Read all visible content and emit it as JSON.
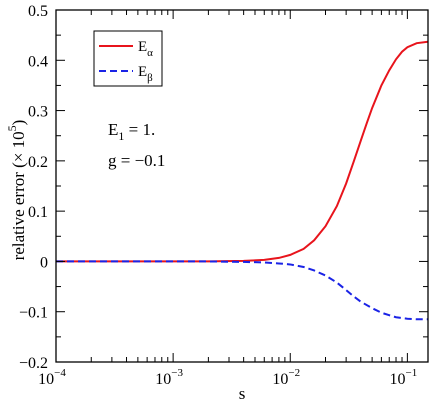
{
  "chart_data": {
    "type": "line",
    "title": "",
    "xlabel": "s",
    "ylabel": "relative error (× 10",
    "ylabel_exponent": "5",
    "ylabel_close": ")",
    "x_scale": "log",
    "xlim": [
      0.0001,
      0.15
    ],
    "ylim": [
      -0.2,
      0.5
    ],
    "grid": false,
    "legend_position": "top-left",
    "y_ticks": [
      {
        "value": -0.2,
        "label": "−0.2"
      },
      {
        "value": -0.1,
        "label": "−0.1"
      },
      {
        "value": 0,
        "label": "0"
      },
      {
        "value": 0.1,
        "label": "0.1"
      },
      {
        "value": 0.2,
        "label": "0.2"
      },
      {
        "value": 0.3,
        "label": "0.3"
      },
      {
        "value": 0.4,
        "label": "0.4"
      },
      {
        "value": 0.5,
        "label": "0.5"
      }
    ],
    "x_ticks": [
      {
        "value": 0.0001,
        "base": "10",
        "exp": "−4"
      },
      {
        "value": 0.001,
        "base": "10",
        "exp": "−3"
      },
      {
        "value": 0.01,
        "base": "10",
        "exp": "−2"
      },
      {
        "value": 0.1,
        "base": "10",
        "exp": "−1"
      }
    ],
    "annotations": [
      {
        "main": "E",
        "sub": "1",
        "rest": " = 1."
      },
      {
        "main": "g = −0.1"
      }
    ],
    "series": [
      {
        "name_main": "E",
        "name_sub": "α",
        "color": "#e8141c",
        "dash": "solid",
        "points": [
          [
            0.0001,
            0.0
          ],
          [
            0.002,
            0.0
          ],
          [
            0.004,
            0.001
          ],
          [
            0.006,
            0.003
          ],
          [
            0.008,
            0.007
          ],
          [
            0.01,
            0.013
          ],
          [
            0.013,
            0.025
          ],
          [
            0.016,
            0.042
          ],
          [
            0.02,
            0.07
          ],
          [
            0.025,
            0.11
          ],
          [
            0.03,
            0.155
          ],
          [
            0.035,
            0.2
          ],
          [
            0.04,
            0.24
          ],
          [
            0.045,
            0.275
          ],
          [
            0.05,
            0.305
          ],
          [
            0.06,
            0.35
          ],
          [
            0.07,
            0.38
          ],
          [
            0.08,
            0.402
          ],
          [
            0.09,
            0.417
          ],
          [
            0.1,
            0.426
          ],
          [
            0.12,
            0.434
          ],
          [
            0.15,
            0.437
          ]
        ]
      },
      {
        "name_main": "E",
        "name_sub": "β",
        "color": "#1a23e6",
        "dash": "dashed",
        "points": [
          [
            0.0001,
            0.0
          ],
          [
            0.002,
            0.0
          ],
          [
            0.004,
            -0.001
          ],
          [
            0.006,
            -0.002
          ],
          [
            0.008,
            -0.004
          ],
          [
            0.01,
            -0.006
          ],
          [
            0.013,
            -0.011
          ],
          [
            0.016,
            -0.018
          ],
          [
            0.02,
            -0.028
          ],
          [
            0.025,
            -0.042
          ],
          [
            0.03,
            -0.057
          ],
          [
            0.035,
            -0.07
          ],
          [
            0.04,
            -0.08
          ],
          [
            0.05,
            -0.093
          ],
          [
            0.06,
            -0.102
          ],
          [
            0.07,
            -0.107
          ],
          [
            0.08,
            -0.111
          ],
          [
            0.1,
            -0.114
          ],
          [
            0.12,
            -0.115
          ],
          [
            0.15,
            -0.115
          ]
        ]
      }
    ]
  }
}
